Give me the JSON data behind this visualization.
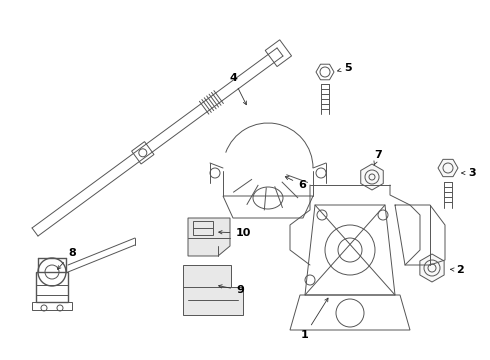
{
  "bg_color": "#ffffff",
  "line_color": "#555555",
  "label_color": "#000000",
  "fig_width": 4.9,
  "fig_height": 3.6,
  "dpi": 100
}
